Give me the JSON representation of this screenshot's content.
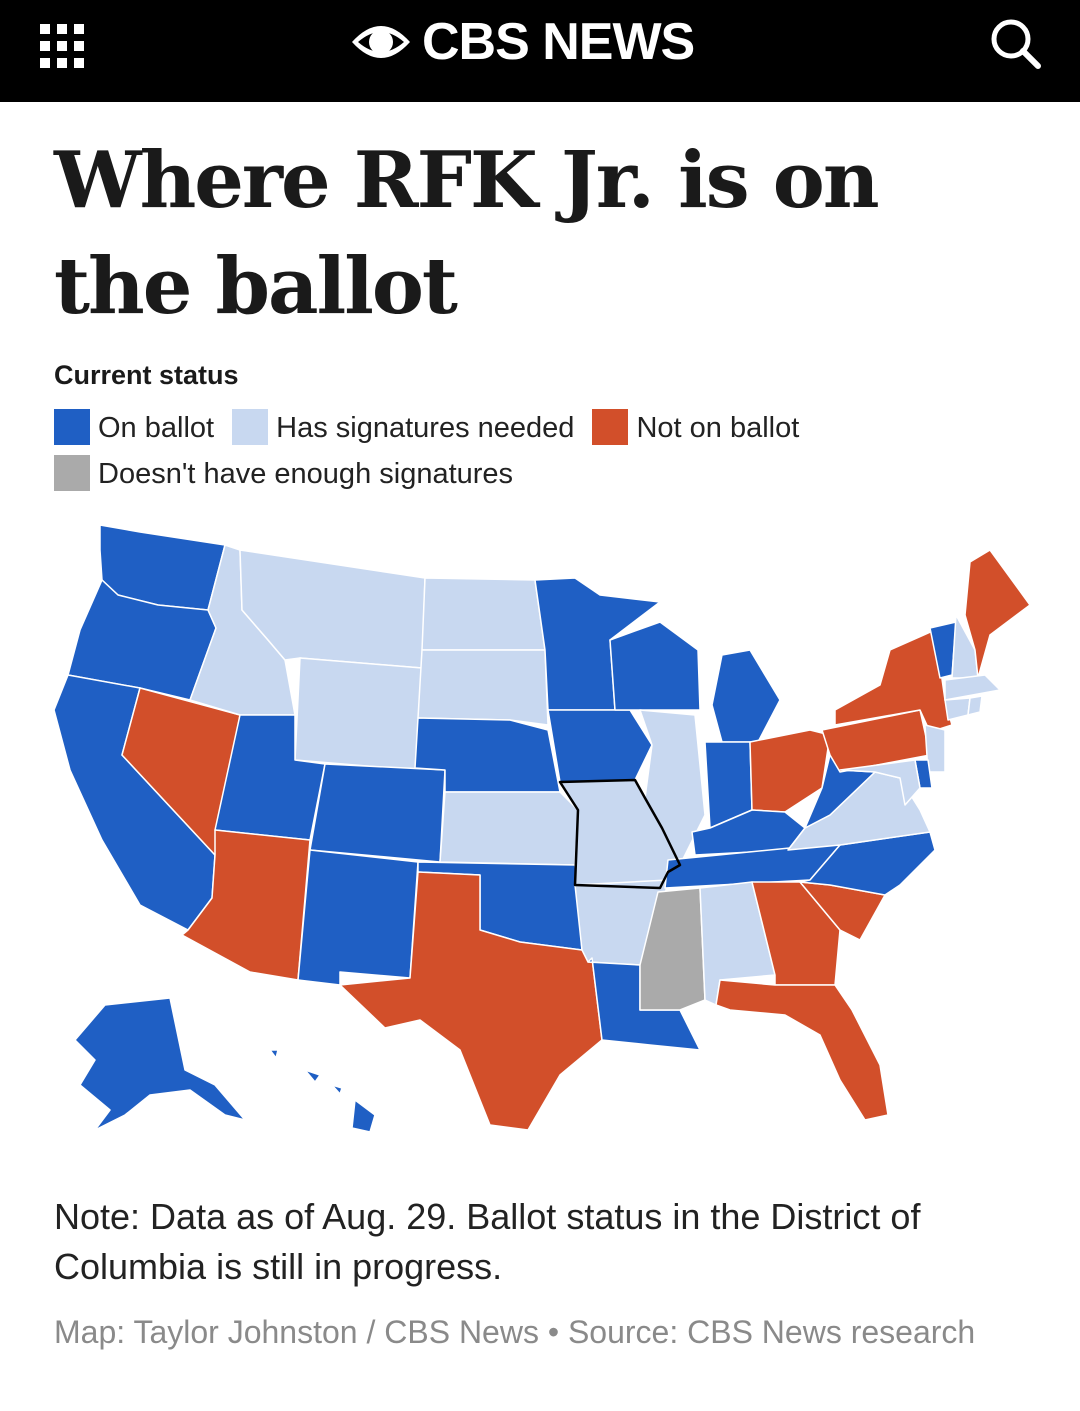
{
  "header": {
    "logo_text": "CBS NEWS",
    "menu_icon": "grid-menu-icon",
    "search_icon": "search-icon",
    "background": "#000000"
  },
  "article": {
    "headline": "Where RFK Jr. is on the ballot"
  },
  "legend": {
    "title": "Current status",
    "items": [
      {
        "label": "On ballot",
        "color": "#1f5fc4"
      },
      {
        "label": "Has signatures needed",
        "color": "#c8d8f0"
      },
      {
        "label": "Not on ballot",
        "color": "#d24f2a"
      },
      {
        "label": "Doesn't have enough signatures",
        "color": "#aaaaaa"
      }
    ]
  },
  "map": {
    "status_colors": {
      "on": "#1f5fc4",
      "signatures": "#c8d8f0",
      "not_on": "#d24f2a",
      "not_enough": "#aaaaaa"
    },
    "highlighted_state": "MO",
    "states": {
      "WA": "on",
      "OR": "on",
      "CA": "on",
      "NV": "not_on",
      "ID": "signatures",
      "MT": "signatures",
      "WY": "signatures",
      "UT": "on",
      "AZ": "not_on",
      "CO": "on",
      "NM": "on",
      "ND": "signatures",
      "SD": "signatures",
      "NE": "on",
      "KS": "signatures",
      "OK": "on",
      "TX": "not_on",
      "MN": "on",
      "IA": "on",
      "MO": "signatures",
      "AR": "signatures",
      "LA": "on",
      "WI": "on",
      "IL": "signatures",
      "MI": "on",
      "IN": "on",
      "OH": "not_on",
      "KY": "on",
      "TN": "on",
      "MS": "not_enough",
      "AL": "signatures",
      "GA": "not_on",
      "FL": "not_on",
      "SC": "not_on",
      "NC": "on",
      "VA": "signatures",
      "WV": "on",
      "PA": "not_on",
      "NY": "not_on",
      "NJ": "signatures",
      "DE": "on",
      "MD": "signatures",
      "VT": "on",
      "NH": "signatures",
      "ME": "not_on",
      "MA": "signatures",
      "CT": "signatures",
      "RI": "signatures",
      "AK": "on",
      "HI": "on"
    }
  },
  "note": "Note: Data as of Aug. 29. Ballot status in the District of Columbia is still in progress.",
  "credit": "Map: Taylor Johnston / CBS News • Source: CBS News research"
}
